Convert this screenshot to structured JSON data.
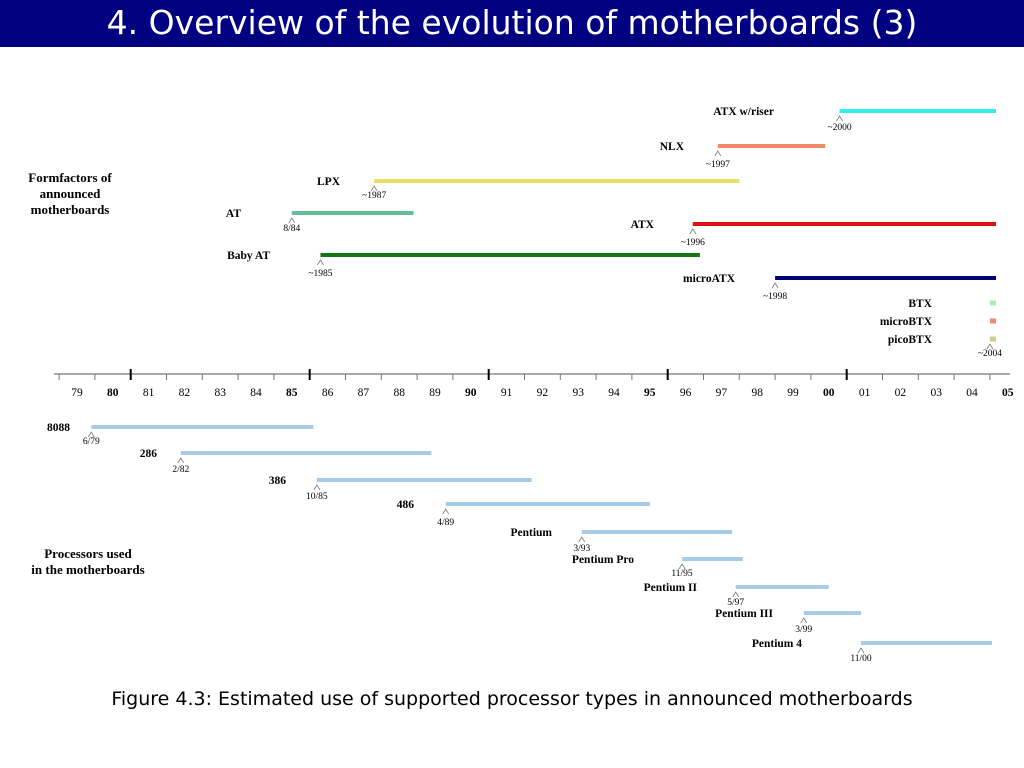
{
  "title": "4. Overview of the evolution of motherboards (3)",
  "caption": "Figure 4.3: Estimated use of supported processor types in announced motherboards",
  "section_labels": {
    "formfactors": [
      "Formfactors of",
      "announced",
      "motherboards"
    ],
    "processors": [
      "Processors used",
      "in the motherboards"
    ]
  },
  "timeline": {
    "years": [
      "79",
      "80",
      "81",
      "82",
      "83",
      "84",
      "85",
      "86",
      "87",
      "88",
      "89",
      "90",
      "91",
      "92",
      "93",
      "94",
      "95",
      "96",
      "97",
      "98",
      "99",
      "00",
      "01",
      "02",
      "03",
      "04",
      "05"
    ],
    "bold_years": [
      "80",
      "85",
      "90",
      "95",
      "00",
      "05"
    ]
  },
  "formfactors": [
    {
      "name": "ATX w/riser",
      "date": "~2000",
      "start": 2000.3,
      "end": 2005.9,
      "color": "#33eeee"
    },
    {
      "name": "NLX",
      "date": "~1997",
      "start": 1996.9,
      "end": 1999.9,
      "color": "#ee8866"
    },
    {
      "name": "LPX",
      "date": "~1987",
      "start": 1987.3,
      "end": 1997.5,
      "color": "#e8e066"
    },
    {
      "name": "AT",
      "date": "8/84",
      "start": 1985.0,
      "end": 1988.4,
      "color": "#66bb99"
    },
    {
      "name": "ATX",
      "date": "~1996",
      "start": 1996.2,
      "end": 2006.0,
      "color": "#dd1111"
    },
    {
      "name": "Baby AT",
      "date": "~1985",
      "start": 1985.8,
      "end": 1996.4,
      "color": "#117711"
    },
    {
      "name": "microATX",
      "date": "~1998",
      "start": 1998.5,
      "end": 2006.0,
      "color": "#000077"
    },
    {
      "name": "BTX",
      "date": "",
      "start": 2004.5,
      "end": 2005.9,
      "color": "#b0e8b8"
    },
    {
      "name": "microBTX",
      "date": "",
      "start": 2004.5,
      "end": 2005.9,
      "color": "#ee8877"
    },
    {
      "name": "picoBTX",
      "date": "~2004",
      "start": 2004.5,
      "end": 2005.9,
      "color": "#d4c898"
    }
  ],
  "processors": [
    {
      "name": "8088",
      "date": "6/79",
      "start": 1979.4,
      "end": 1985.6,
      "color": "#a8cce8"
    },
    {
      "name": "286",
      "date": "2/82",
      "start": 1981.9,
      "end": 1988.9,
      "color": "#a8cce8"
    },
    {
      "name": "386",
      "date": "10/85",
      "start": 1985.7,
      "end": 1991.7,
      "color": "#a8cce8"
    },
    {
      "name": "486",
      "date": "4/89",
      "start": 1989.3,
      "end": 1995.0,
      "color": "#a8cce8"
    },
    {
      "name": "Pentium",
      "date": "3/93",
      "start": 1993.1,
      "end": 1997.3,
      "color": "#a8cce8"
    },
    {
      "name": "Pentium Pro",
      "date": "11/95",
      "start": 1995.9,
      "end": 1997.6,
      "color": "#a8cce8"
    },
    {
      "name": "Pentium II",
      "date": "5/97",
      "start": 1997.4,
      "end": 2000.0,
      "color": "#a8cce8"
    },
    {
      "name": "Pentium III",
      "date": "3/99",
      "start": 1999.3,
      "end": 2000.9,
      "color": "#a8cce8"
    },
    {
      "name": "Pentium 4",
      "date": "11/00",
      "start": 2000.9,
      "end": 2005.8,
      "color": "#a8cce8"
    }
  ]
}
